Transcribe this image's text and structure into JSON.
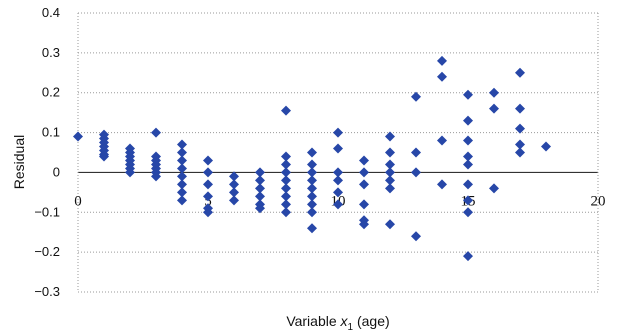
{
  "chart_data": {
    "type": "scatter",
    "title": "",
    "xlabel": "Variable x1 (age)",
    "xlabel_parts": {
      "main": "Variable ",
      "var": "x",
      "sub": "1",
      "rest": " (age)"
    },
    "ylabel": "Residual",
    "xlim": [
      0,
      20
    ],
    "ylim": [
      -0.3,
      0.4
    ],
    "xticks": [
      "0",
      "5",
      "10",
      "15",
      "20"
    ],
    "yticks": [
      "0.4",
      "0.3",
      "0.2",
      "0.1",
      "0",
      "−0.1",
      "−0.2",
      "−0.3"
    ],
    "grid": true,
    "legend": "none",
    "marker": "diamond",
    "color": "#2747a8",
    "series": [
      {
        "points": [
          [
            0,
            0.09
          ],
          [
            1,
            0.095
          ],
          [
            1,
            0.085
          ],
          [
            1,
            0.075
          ],
          [
            1,
            0.065
          ],
          [
            1,
            0.055
          ],
          [
            1,
            0.045
          ],
          [
            1,
            0.04
          ],
          [
            2,
            0.06
          ],
          [
            2,
            0.05
          ],
          [
            2,
            0.04
          ],
          [
            2,
            0.03
          ],
          [
            2,
            0.02
          ],
          [
            2,
            0.01
          ],
          [
            2,
            0.0
          ],
          [
            3,
            0.1
          ],
          [
            3,
            0.04
          ],
          [
            3,
            0.03
          ],
          [
            3,
            0.02
          ],
          [
            3,
            0.01
          ],
          [
            3,
            0.0
          ],
          [
            3,
            -0.01
          ],
          [
            4,
            0.07
          ],
          [
            4,
            0.05
          ],
          [
            4,
            0.03
          ],
          [
            4,
            0.01
          ],
          [
            4,
            -0.01
          ],
          [
            4,
            -0.03
          ],
          [
            4,
            -0.05
          ],
          [
            4,
            -0.07
          ],
          [
            5,
            0.03
          ],
          [
            5,
            0.0
          ],
          [
            5,
            -0.03
          ],
          [
            5,
            -0.06
          ],
          [
            5,
            -0.09
          ],
          [
            5,
            -0.1
          ],
          [
            6,
            -0.01
          ],
          [
            6,
            -0.03
          ],
          [
            6,
            -0.05
          ],
          [
            6,
            -0.07
          ],
          [
            7,
            0.0
          ],
          [
            7,
            -0.02
          ],
          [
            7,
            -0.04
          ],
          [
            7,
            -0.06
          ],
          [
            7,
            -0.08
          ],
          [
            7,
            -0.09
          ],
          [
            8,
            0.155
          ],
          [
            8,
            0.04
          ],
          [
            8,
            0.02
          ],
          [
            8,
            0.0
          ],
          [
            8,
            -0.02
          ],
          [
            8,
            -0.04
          ],
          [
            8,
            -0.06
          ],
          [
            8,
            -0.08
          ],
          [
            8,
            -0.1
          ],
          [
            9,
            0.05
          ],
          [
            9,
            0.02
          ],
          [
            9,
            0.0
          ],
          [
            9,
            -0.02
          ],
          [
            9,
            -0.04
          ],
          [
            9,
            -0.06
          ],
          [
            9,
            -0.08
          ],
          [
            9,
            -0.1
          ],
          [
            9,
            -0.14
          ],
          [
            10,
            0.1
          ],
          [
            10,
            0.06
          ],
          [
            10,
            0.0
          ],
          [
            10,
            -0.02
          ],
          [
            10,
            -0.05
          ],
          [
            10,
            -0.08
          ],
          [
            11,
            0.03
          ],
          [
            11,
            0.0
          ],
          [
            11,
            -0.03
          ],
          [
            11,
            -0.08
          ],
          [
            11,
            -0.12
          ],
          [
            11,
            -0.13
          ],
          [
            12,
            0.09
          ],
          [
            12,
            0.05
          ],
          [
            12,
            0.02
          ],
          [
            12,
            0.0
          ],
          [
            12,
            -0.02
          ],
          [
            12,
            -0.04
          ],
          [
            12,
            -0.13
          ],
          [
            13,
            0.19
          ],
          [
            13,
            0.05
          ],
          [
            13,
            0.0
          ],
          [
            13,
            -0.16
          ],
          [
            14,
            0.28
          ],
          [
            14,
            0.24
          ],
          [
            14,
            0.08
          ],
          [
            14,
            -0.03
          ],
          [
            15,
            0.195
          ],
          [
            15,
            0.13
          ],
          [
            15,
            0.08
          ],
          [
            15,
            0.04
          ],
          [
            15,
            0.02
          ],
          [
            15,
            -0.03
          ],
          [
            15,
            -0.07
          ],
          [
            15,
            -0.1
          ],
          [
            15,
            -0.21
          ],
          [
            16,
            0.2
          ],
          [
            16,
            0.16
          ],
          [
            16,
            -0.04
          ],
          [
            17,
            0.25
          ],
          [
            17,
            0.16
          ],
          [
            17,
            0.11
          ],
          [
            17,
            0.07
          ],
          [
            17,
            0.05
          ],
          [
            18,
            0.065
          ]
        ]
      }
    ]
  }
}
